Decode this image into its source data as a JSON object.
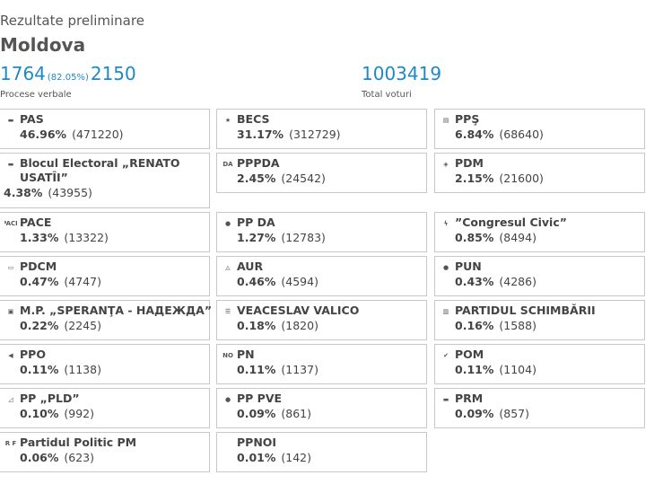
{
  "header": {
    "subtitle": "Rezultate preliminare",
    "region": "Moldova",
    "processed": "1764",
    "processed_pct": "(82.05%)",
    "total_protocols": "2150",
    "protocols_label": "Procese verbale",
    "total_votes": "1003419",
    "votes_label": "Total voturi"
  },
  "colors": {
    "accent": "#1e88c8",
    "border": "#c8c8c8"
  },
  "parties": [
    {
      "name": "PAS",
      "percent": "46.96%",
      "votes": "(471220)",
      "icon": "pas-logo-icon",
      "logo": "▬"
    },
    {
      "name": "BECS",
      "percent": "31.17%",
      "votes": "(312729)",
      "icon": "star-icon",
      "logo": "★"
    },
    {
      "name": "PPŞ",
      "percent": "6.84%",
      "votes": "(68640)",
      "icon": "pps-logo-icon",
      "logo": "▤"
    },
    {
      "name": "Blocul Electoral „RENATO USATÎI”",
      "percent": "4.38%",
      "votes": "(43955)",
      "icon": "renato-usatii-logo-icon",
      "logo": "▬"
    },
    {
      "name": "PPPDA",
      "percent": "2.45%",
      "votes": "(24542)",
      "icon": "pppda-logo-icon",
      "logo": "DA"
    },
    {
      "name": "PDM",
      "percent": "2.15%",
      "votes": "(21600)",
      "icon": "pdm-logo-icon",
      "logo": "◈"
    },
    {
      "name": "PACE",
      "percent": "1.33%",
      "votes": "(13322)",
      "icon": "pace-logo-icon",
      "logo": "PACE"
    },
    {
      "name": "PP DA",
      "percent": "1.27%",
      "votes": "(12783)",
      "icon": "ppda-logo-icon",
      "logo": "●"
    },
    {
      "name": "”Congresul Civic”",
      "percent": "0.85%",
      "votes": "(8494)",
      "icon": "congresul-civic-logo-icon",
      "logo": "ϟ"
    },
    {
      "name": "PDCM",
      "percent": "0.47%",
      "votes": "(4747)",
      "icon": "pdcm-logo-icon",
      "logo": "▭"
    },
    {
      "name": "AUR",
      "percent": "0.46%",
      "votes": "(4594)",
      "icon": "aur-logo-icon",
      "logo": "◬"
    },
    {
      "name": "PUN",
      "percent": "0.43%",
      "votes": "(4286)",
      "icon": "pun-logo-icon",
      "logo": "●"
    },
    {
      "name": "M.P. „SPERANŢA - НАДЕЖДА”",
      "percent": "0.22%",
      "votes": "(2245)",
      "icon": "speranta-logo-icon",
      "logo": "▣"
    },
    {
      "name": "VEACESLAV VALICO",
      "percent": "0.18%",
      "votes": "(1820)",
      "icon": "valico-logo-icon",
      "logo": "☰"
    },
    {
      "name": "PARTIDUL SCHIMBĂRII",
      "percent": "0.16%",
      "votes": "(1588)",
      "icon": "schimbarii-logo-icon",
      "logo": "▥"
    },
    {
      "name": "PPO",
      "percent": "0.11%",
      "votes": "(1138)",
      "icon": "ppo-logo-icon",
      "logo": "◀"
    },
    {
      "name": "PN",
      "percent": "0.11%",
      "votes": "(1137)",
      "icon": "pn-logo-icon",
      "logo": "NO"
    },
    {
      "name": "POM",
      "percent": "0.11%",
      "votes": "(1104)",
      "icon": "pom-logo-icon",
      "logo": "✔"
    },
    {
      "name": "PP „PLD”",
      "percent": "0.10%",
      "votes": "(992)",
      "icon": "pld-logo-icon",
      "logo": "◿"
    },
    {
      "name": "PP PVE",
      "percent": "0.09%",
      "votes": "(861)",
      "icon": "pve-logo-icon",
      "logo": "●"
    },
    {
      "name": "PRM",
      "percent": "0.09%",
      "votes": "(857)",
      "icon": "prm-logo-icon",
      "logo": "▬"
    },
    {
      "name": "Partidul Politic PM",
      "percent": "0.06%",
      "votes": "(623)",
      "icon": "pm-logo-icon",
      "logo": "R F"
    },
    {
      "name": "PPNOI",
      "percent": "0.01%",
      "votes": "(142)",
      "icon": "",
      "logo": ""
    }
  ]
}
